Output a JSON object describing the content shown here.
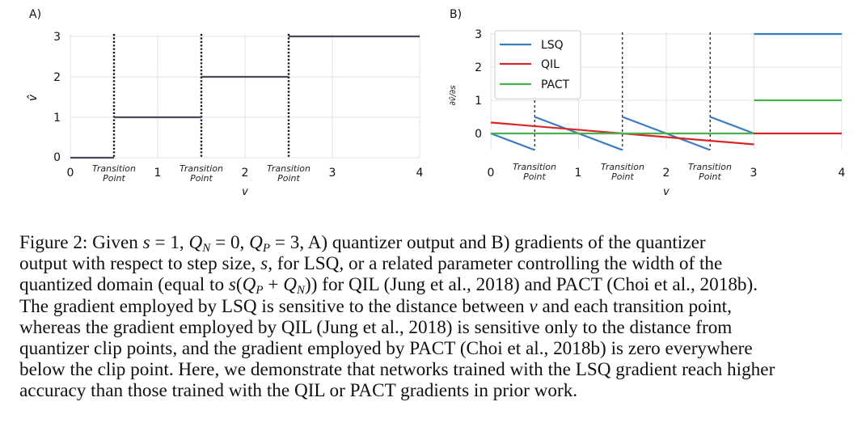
{
  "figure": {
    "panels": [
      {
        "label": "A)",
        "ylabel": "v̂",
        "xlabel": "v",
        "x_ticks": [
          "0",
          "1",
          "2",
          "3",
          "4"
        ],
        "y_ticks": [
          "0",
          "1",
          "2",
          "3"
        ],
        "transition_label": [
          "Transition",
          "Point"
        ]
      },
      {
        "label": "B)",
        "ylabel": "∂v̂/∂s",
        "xlabel": "v",
        "x_ticks": [
          "0",
          "1",
          "2",
          "3",
          "4"
        ],
        "y_ticks": [
          "0",
          "1",
          "2",
          "3"
        ],
        "transition_label": [
          "Transition",
          "Point"
        ],
        "legend": [
          "LSQ",
          "QIL",
          "PACT"
        ]
      }
    ]
  },
  "chart_data": [
    {
      "type": "line",
      "title": "A)",
      "xlabel": "v",
      "ylabel": "v̂",
      "xlim": [
        0,
        4
      ],
      "ylim": [
        0,
        3
      ],
      "transition_points": [
        0.5,
        1.5,
        2.5
      ],
      "series": [
        {
          "name": "quantizer output",
          "color": "#4a4a5a",
          "segments": [
            {
              "x": [
                0,
                0.5
              ],
              "y": [
                0,
                0
              ]
            },
            {
              "x": [
                0.5,
                1.5
              ],
              "y": [
                1,
                1
              ]
            },
            {
              "x": [
                1.5,
                2.5
              ],
              "y": [
                2,
                2
              ]
            },
            {
              "x": [
                2.5,
                4
              ],
              "y": [
                3,
                3
              ]
            }
          ]
        }
      ],
      "annotations": [
        "Transition Point",
        "Transition Point",
        "Transition Point"
      ]
    },
    {
      "type": "line",
      "title": "B)",
      "xlabel": "v",
      "ylabel": "∂v̂/∂s",
      "xlim": [
        0,
        4
      ],
      "ylim": [
        -0.5,
        3
      ],
      "transition_points": [
        0.5,
        1.5,
        2.5
      ],
      "legend": "top-left",
      "series": [
        {
          "name": "LSQ",
          "color": "#3a7dbf",
          "segments": [
            {
              "x": [
                0,
                0.5
              ],
              "y": [
                0,
                -0.5
              ]
            },
            {
              "x": [
                0.5,
                1.5
              ],
              "y": [
                0.5,
                -0.5
              ]
            },
            {
              "x": [
                1.5,
                2.5
              ],
              "y": [
                0.5,
                -0.5
              ]
            },
            {
              "x": [
                2.5,
                3
              ],
              "y": [
                0.5,
                0
              ]
            },
            {
              "x": [
                3,
                4
              ],
              "y": [
                3,
                3
              ]
            }
          ]
        },
        {
          "name": "QIL",
          "color": "#d62728",
          "segments": [
            {
              "x": [
                0,
                3
              ],
              "y": [
                0.33,
                -0.33
              ]
            },
            {
              "x": [
                3,
                4
              ],
              "y": [
                0,
                0
              ]
            }
          ]
        },
        {
          "name": "PACT",
          "color": "#4caf50",
          "segments": [
            {
              "x": [
                0,
                3
              ],
              "y": [
                0,
                0
              ]
            },
            {
              "x": [
                3,
                4
              ],
              "y": [
                1,
                1
              ]
            }
          ]
        }
      ],
      "annotations": [
        "Transition Point",
        "Transition Point",
        "Transition Point"
      ]
    }
  ],
  "caption": {
    "l1_a": "Figure 2: Given ",
    "l1_s": "s",
    "l1_b": " = 1, ",
    "l1_q1": "Q",
    "l1_n": "N",
    "l1_c": " = 0, ",
    "l1_q2": "Q",
    "l1_p": "P",
    "l1_d": " = 3, A) quantizer output and B) gradients of the quantizer",
    "l2_a": "output with respect to step size, ",
    "l2_s": "s",
    "l2_b": ", for LSQ, or a related parameter controlling the width of the",
    "l3_a": "quantized domain (equal to ",
    "l3_s": "s",
    "l3_b": "(",
    "l3_q1": "Q",
    "l3_p": "P",
    "l3_c": " + ",
    "l3_q2": "Q",
    "l3_n": "N",
    "l3_d": ")) for QIL (Jung et al., 2018) and PACT (Choi et al., 2018b).",
    "l4_a": "The gradient employed by LSQ is sensitive to the distance between ",
    "l4_v": "v",
    "l4_b": " and each transition point,",
    "l5": "whereas the gradient employed by QIL (Jung et al., 2018) is sensitive only to the distance from",
    "l6": "quantizer clip points, and the gradient employed by PACT (Choi et al., 2018b) is zero everywhere",
    "l7": "below the clip point. Here, we demonstrate that networks trained with the LSQ gradient reach higher",
    "l8": "accuracy than those trained with the QIL or PACT gradients in prior work."
  }
}
